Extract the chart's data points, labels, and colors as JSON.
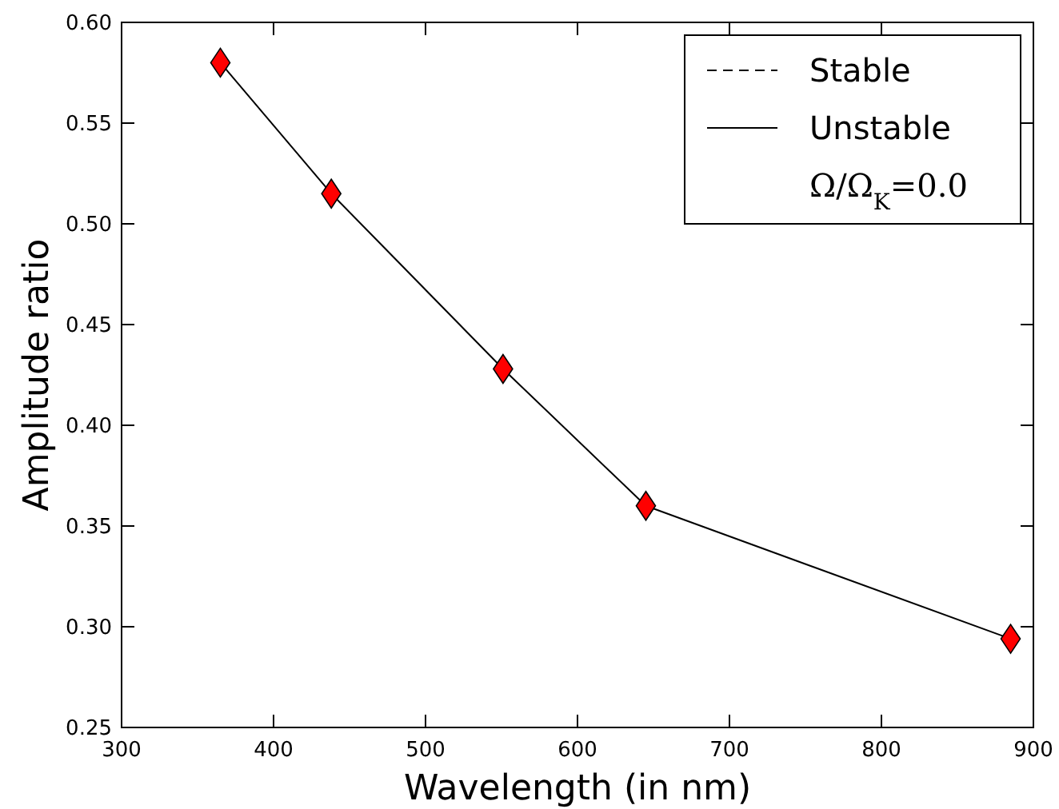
{
  "chart_data": {
    "type": "line",
    "xlabel": "Wavelength (in nm)",
    "ylabel": "Amplitude ratio",
    "x": [
      365,
      438,
      551,
      645,
      885
    ],
    "series": [
      {
        "name": "Stable",
        "color": "#000000",
        "line_style": "dashed",
        "marker": "none",
        "values": [
          null,
          null,
          null,
          null,
          null
        ]
      },
      {
        "name": "Unstable",
        "color": "#000000",
        "line_style": "solid",
        "marker": "none",
        "values": [
          0.58,
          0.515,
          0.428,
          0.36,
          0.294
        ]
      },
      {
        "type": "scatter",
        "color": "#ff0000",
        "marker": "diamond",
        "values": [
          0.58,
          0.515,
          0.428,
          0.36,
          0.294
        ]
      }
    ],
    "annotations": [
      "Ω/Ω$_{K}$=0.0"
    ],
    "xlim": [
      300,
      900
    ],
    "xticks": [
      300,
      400,
      500,
      600,
      700,
      800,
      900
    ],
    "ylim": [
      0.25,
      0.6
    ],
    "yticks": [
      {
        "value": 0.25,
        "label": "0.25"
      },
      {
        "value": 0.3,
        "label": "0.30"
      },
      {
        "value": 0.35,
        "label": "0.35"
      },
      {
        "value": 0.4,
        "label": "0.40"
      },
      {
        "value": 0.45,
        "label": "0.45"
      },
      {
        "value": 0.5,
        "label": "0.50"
      },
      {
        "value": 0.55,
        "label": "0.55"
      },
      {
        "value": 0.6,
        "label": "0.60"
      }
    ],
    "grid": false,
    "legend": "top right"
  }
}
